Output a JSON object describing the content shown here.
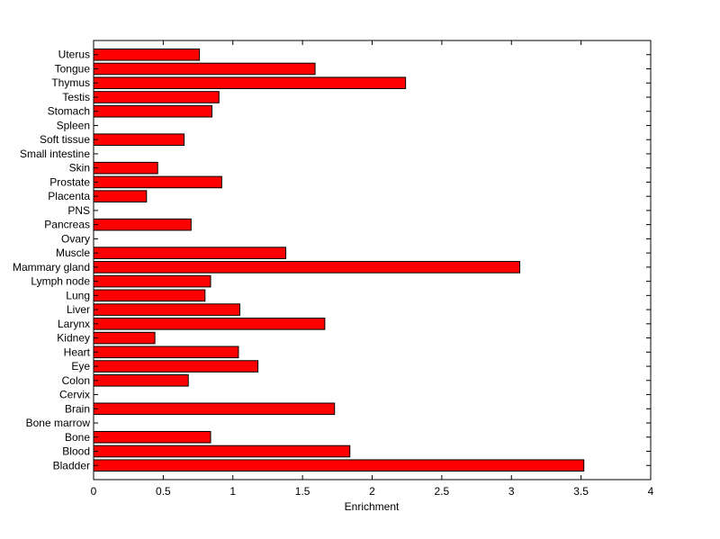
{
  "colors": {
    "bar_fill": "#ff0000",
    "bar_stroke": "#000000",
    "axis": "#000000",
    "background": "#ffffff"
  },
  "chart_data": {
    "type": "bar",
    "orientation": "horizontal",
    "xlabel": "Enrichment",
    "ylabel": "",
    "title": "",
    "xlim": [
      0,
      4
    ],
    "xticks": [
      0,
      0.5,
      1,
      1.5,
      2,
      2.5,
      3,
      3.5,
      4
    ],
    "xtick_labels": [
      "0",
      "0.5",
      "1",
      "1.5",
      "2",
      "2.5",
      "3",
      "3.5",
      "4"
    ],
    "grid": false,
    "categories": [
      "Bladder",
      "Blood",
      "Bone",
      "Bone marrow",
      "Brain",
      "Cervix",
      "Colon",
      "Eye",
      "Heart",
      "Kidney",
      "Larynx",
      "Liver",
      "Lung",
      "Lymph node",
      "Mammary gland",
      "Muscle",
      "Ovary",
      "Pancreas",
      "PNS",
      "Placenta",
      "Prostate",
      "Skin",
      "Small intestine",
      "Soft tissue",
      "Spleen",
      "Stomach",
      "Testis",
      "Thymus",
      "Tongue",
      "Uterus"
    ],
    "values": [
      3.52,
      1.84,
      0.84,
      0,
      1.73,
      0,
      0.68,
      1.18,
      1.04,
      0.44,
      1.66,
      1.05,
      0.8,
      0.84,
      3.06,
      1.38,
      0,
      0.7,
      0,
      0.38,
      0.92,
      0.46,
      0,
      0.65,
      0,
      0.85,
      0.9,
      2.24,
      1.59,
      0.76
    ]
  }
}
